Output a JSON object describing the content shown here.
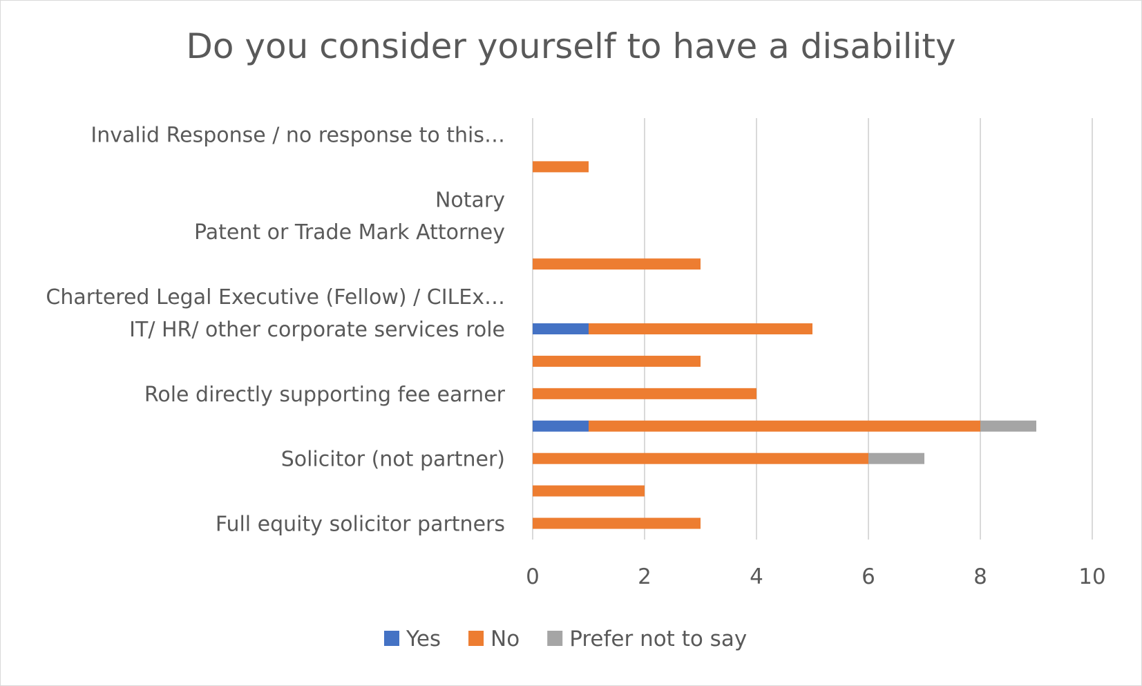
{
  "chart_data": {
    "type": "bar",
    "orientation": "horizontal",
    "stacked": true,
    "title": "Do you consider yourself to have a disability",
    "xlim": [
      0,
      10
    ],
    "xticks": [
      "0",
      "2",
      "4",
      "6",
      "8",
      "10"
    ],
    "grid": true,
    "legend_position": "bottom",
    "categories": [
      "Full equity solicitor partners",
      "",
      "Solicitor (not partner)",
      "",
      "Role directly supporting fee earner",
      "",
      "IT/ HR/ other corporate services role",
      "Chartered Legal Executive (Fellow) / CILEx…",
      "",
      "Patent or Trade Mark Attorney",
      "Notary",
      "",
      "Invalid Response / no response to this…"
    ],
    "series": [
      {
        "name": "Yes",
        "color": "#4472c4",
        "values": [
          0,
          0,
          0,
          1,
          0,
          0,
          1,
          0,
          0,
          0,
          0,
          0,
          0
        ]
      },
      {
        "name": "No",
        "color": "#ed7d31",
        "values": [
          3,
          2,
          6,
          7,
          4,
          3,
          4,
          0,
          3,
          0,
          0,
          1,
          0
        ]
      },
      {
        "name": "Prefer not to say",
        "color": "#a5a5a5",
        "values": [
          0,
          0,
          1,
          1,
          0,
          0,
          0,
          0,
          0,
          0,
          0,
          0,
          0
        ]
      }
    ]
  }
}
